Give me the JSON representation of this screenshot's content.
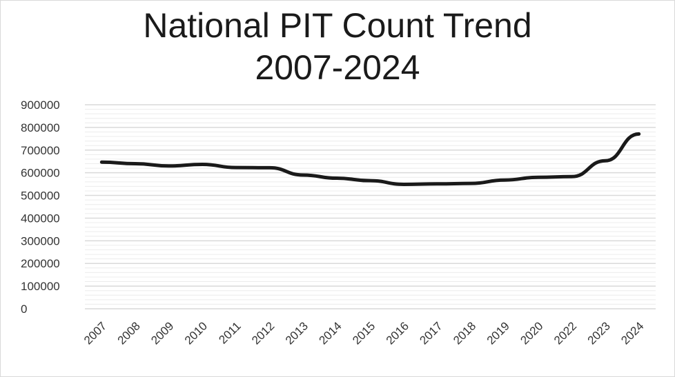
{
  "chart_data": {
    "type": "line",
    "title_line1": "National PIT Count Trend",
    "title_line2": "2007-2024",
    "categories": [
      "2007",
      "2008",
      "2009",
      "2010",
      "2011",
      "2012",
      "2013",
      "2014",
      "2015",
      "2016",
      "2017",
      "2018",
      "2019",
      "2020",
      "2022",
      "2023",
      "2024"
    ],
    "series": [
      {
        "values": [
          647000,
          640000,
          630000,
          637000,
          623000,
          622000,
          590000,
          576000,
          565000,
          549000,
          551000,
          553000,
          568000,
          580000,
          583000,
          653000,
          771000
        ]
      }
    ],
    "yticks": [
      "0",
      "100000",
      "200000",
      "300000",
      "400000",
      "500000",
      "600000",
      "700000",
      "800000",
      "900000"
    ],
    "ylim": [
      0,
      900000
    ],
    "grid": true,
    "line_color": "#1a1a1a",
    "grid_color": "#d9d9d9"
  }
}
